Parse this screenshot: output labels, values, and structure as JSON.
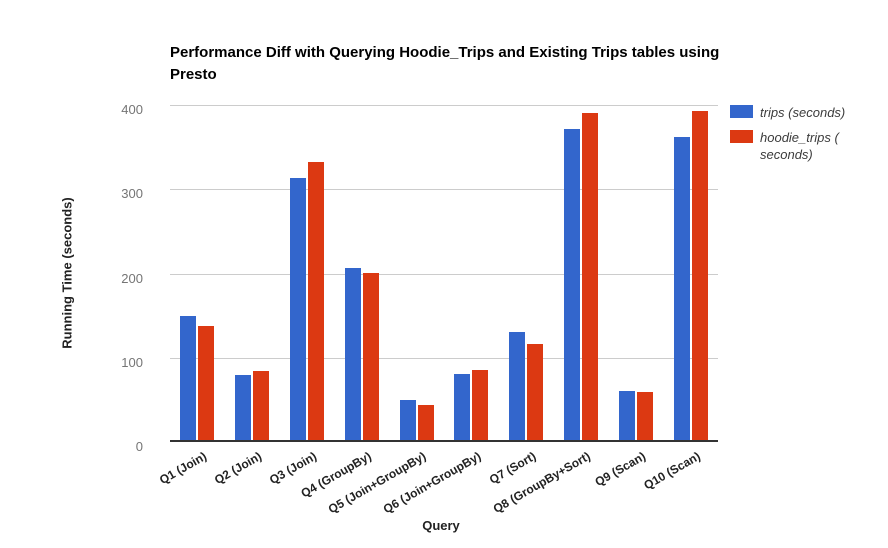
{
  "chart_data": {
    "type": "bar",
    "title": "Performance Diff with Querying Hoodie_Trips and Existing Trips tables using Presto",
    "xlabel": "Query",
    "ylabel": "Running Time (seconds)",
    "ylim": [
      0,
      400
    ],
    "yticks": [
      0,
      100,
      200,
      300,
      400
    ],
    "grid": true,
    "legend_position": "top-right",
    "categories": [
      "Q1 (Join)",
      "Q2 (Join)",
      "Q3 (Join)",
      "Q4 (GroupBy)",
      "Q5 (Join+GroupBy)",
      "Q6 (Join+GroupBy)",
      "Q7 (Sort)",
      "Q8 (GroupBy+Sort)",
      "Q9 (Scan)",
      "Q10 (Scan)"
    ],
    "series": [
      {
        "key": "trips",
        "name": "trips (seconds)",
        "color": "#3366cc",
        "values": [
          150,
          80,
          313,
          207,
          50,
          81,
          130,
          371,
          60,
          362
        ]
      },
      {
        "key": "hoodie_trips",
        "name": "hoodie_trips ( seconds)",
        "color": "#dc3912",
        "values": [
          138,
          84,
          332,
          201,
          44,
          85,
          116,
          390,
          59,
          393
        ]
      }
    ],
    "colors": {
      "gridline": "#cccccc",
      "baseline": "#333333",
      "tick_label": "#757575",
      "category_label": "#222222",
      "legend_text": "#3c3c3c",
      "background": "#ffffff"
    }
  }
}
